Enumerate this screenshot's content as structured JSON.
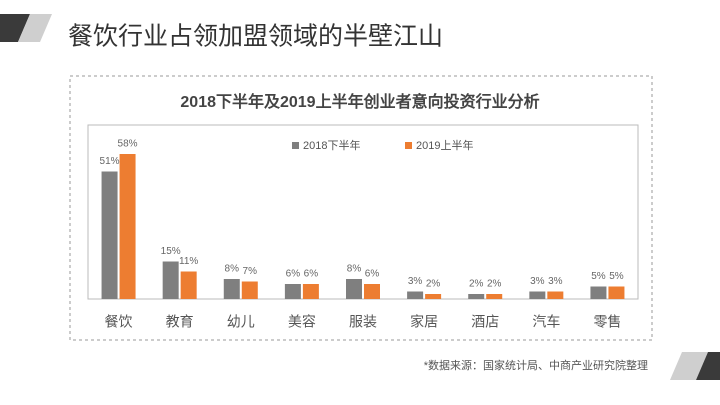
{
  "header": {
    "title": "餐饮行业占领加盟领域的半壁江山"
  },
  "chart_data": {
    "type": "bar",
    "title": "2018下半年及2019上半年创业者意向投资行业分析",
    "categories": [
      "餐饮",
      "教育",
      "幼儿",
      "美容",
      "服装",
      "家居",
      "酒店",
      "汽车",
      "零售"
    ],
    "series": [
      {
        "name": "2018下半年",
        "color": "#7f7f7f",
        "values": [
          51,
          15,
          8,
          6,
          8,
          3,
          2,
          3,
          5
        ],
        "value_labels": [
          "51%",
          "15%",
          "8%",
          "6%",
          "8%",
          "3%",
          "2%",
          "3%",
          "5%"
        ]
      },
      {
        "name": "2019上半年",
        "color": "#ed7d31",
        "values": [
          58,
          11,
          7,
          6,
          6,
          2,
          2,
          3,
          5
        ],
        "value_labels": [
          "58%",
          "11%",
          "7%",
          "6%",
          "6%",
          "2%",
          "2%",
          "3%",
          "5%"
        ]
      }
    ]
  },
  "footer": {
    "source": "*数据来源：国家统计局、中商产业研究院整理"
  }
}
